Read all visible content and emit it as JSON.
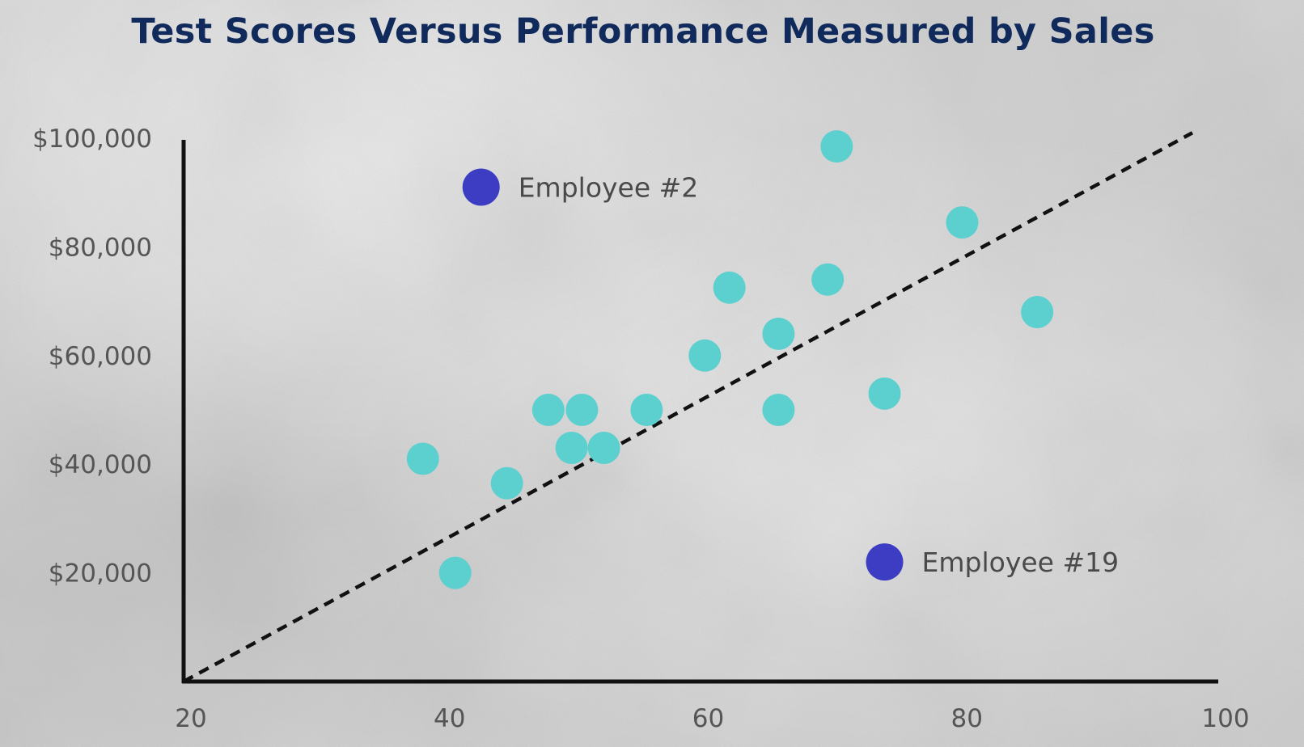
{
  "chart_data": {
    "type": "scatter",
    "title": "Test Scores Versus Performance Measured by Sales",
    "xlabel": "",
    "ylabel": "",
    "xlim": [
      20,
      100
    ],
    "ylim": [
      0,
      100000
    ],
    "x_ticks": [
      "20",
      "40",
      "60",
      "80",
      "100"
    ],
    "y_ticks": [
      "$100,000",
      "$80,000",
      "$60,000",
      "$40,000",
      "$20,000"
    ],
    "grid": false,
    "legend": "none",
    "colors": {
      "points": "#5ccfcf",
      "highlight": "#3d3dc4",
      "title": "#102a5c",
      "axis": "#111111",
      "trend": "#111111"
    },
    "points": [
      {
        "x": 38.5,
        "y": 41000
      },
      {
        "x": 41,
        "y": 20000
      },
      {
        "x": 45,
        "y": 36500
      },
      {
        "x": 48.2,
        "y": 50000
      },
      {
        "x": 50,
        "y": 43000
      },
      {
        "x": 50.8,
        "y": 50000
      },
      {
        "x": 52.5,
        "y": 43000
      },
      {
        "x": 55.8,
        "y": 50000
      },
      {
        "x": 60.3,
        "y": 60000
      },
      {
        "x": 62.2,
        "y": 72500
      },
      {
        "x": 66,
        "y": 64000
      },
      {
        "x": 66,
        "y": 50000
      },
      {
        "x": 69.8,
        "y": 74000
      },
      {
        "x": 70.5,
        "y": 98500
      },
      {
        "x": 74.2,
        "y": 53000
      },
      {
        "x": 80.2,
        "y": 84500
      },
      {
        "x": 86,
        "y": 68000
      }
    ],
    "highlighted": [
      {
        "name": "Employee #2",
        "x": 43,
        "y": 91000
      },
      {
        "name": "Employee #19",
        "x": 74.2,
        "y": 22000
      }
    ],
    "trend_line": {
      "x": [
        20,
        98
      ],
      "y": [
        0,
        101000
      ]
    }
  }
}
